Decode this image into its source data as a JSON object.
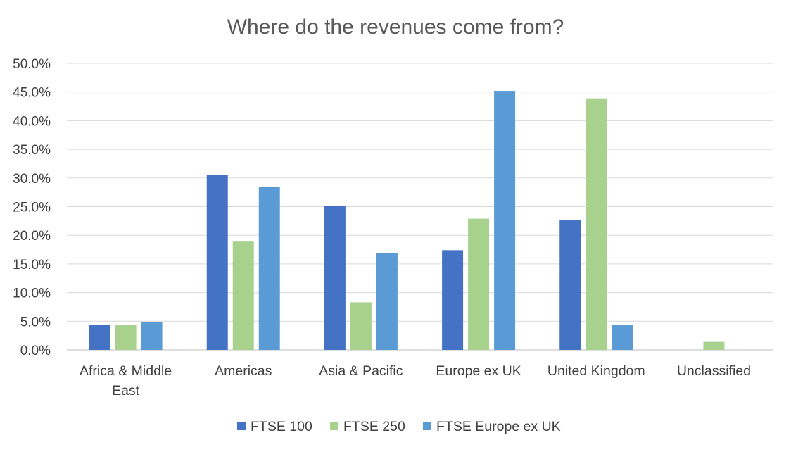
{
  "chart_data": {
    "type": "bar",
    "title": "Where do the revenues come from?",
    "categories": [
      "Africa & Middle East",
      "Americas",
      "Asia & Pacific",
      "Europe ex UK",
      "United Kingdom",
      "Unclassified"
    ],
    "series": [
      {
        "name": "FTSE 100",
        "color": "#4472c4",
        "values": [
          4.3,
          30.5,
          25.1,
          17.4,
          22.6,
          0.0
        ]
      },
      {
        "name": "FTSE 250",
        "color": "#a9d18e",
        "values": [
          4.3,
          18.9,
          8.3,
          22.9,
          43.9,
          1.4
        ]
      },
      {
        "name": "FTSE Europe ex UK",
        "color": "#5b9bd5",
        "values": [
          4.9,
          28.4,
          16.9,
          45.2,
          4.4,
          0.0
        ]
      }
    ],
    "xlabel": "",
    "ylabel": "",
    "ylim": [
      0,
      50
    ],
    "yticks": [
      "0.0%",
      "5.0%",
      "10.0%",
      "15.0%",
      "20.0%",
      "25.0%",
      "30.0%",
      "35.0%",
      "40.0%",
      "45.0%",
      "50.0%"
    ],
    "grid": true,
    "legend_position": "bottom"
  }
}
